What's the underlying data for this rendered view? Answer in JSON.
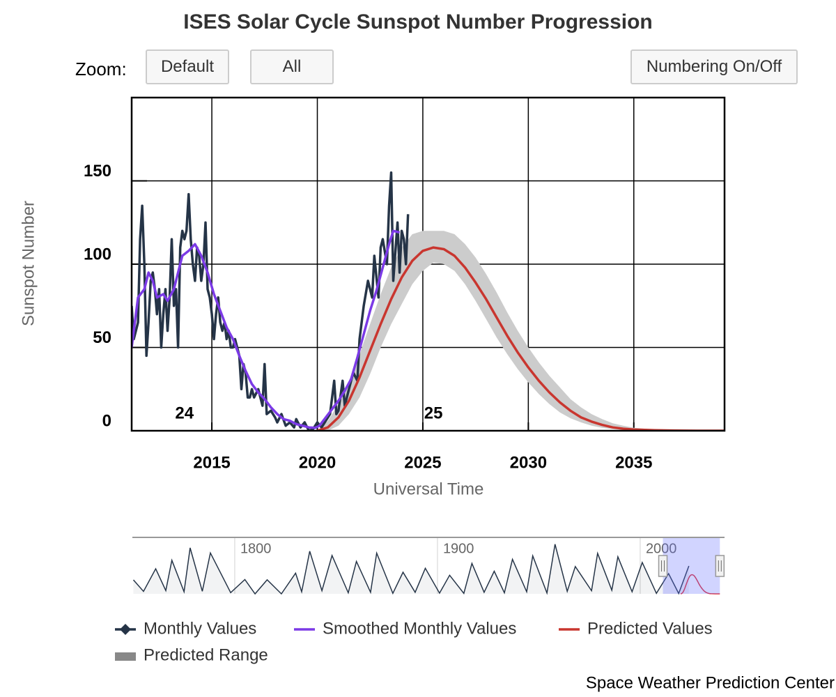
{
  "chart_data": {
    "type": "line",
    "title": "ISES Solar Cycle Sunspot Number Progression",
    "controls": {
      "zoom_label": "Zoom:",
      "buttons": [
        "Default",
        "All",
        "Numbering On/Off"
      ]
    },
    "x_label": "Universal Time",
    "y_label": "Sunspot Number",
    "xlim": [
      2011.2,
      2039.3
    ],
    "ylim": [
      0,
      200
    ],
    "xticks": [
      2015,
      2020,
      2025,
      2030,
      2035
    ],
    "yticks": [
      0,
      50,
      100,
      150
    ],
    "grid": true,
    "series": [
      {
        "name": "Monthly Values",
        "color": "#253447",
        "x": [
          2011.2,
          2011.3,
          2011.4,
          2011.5,
          2011.6,
          2011.7,
          2011.8,
          2011.9,
          2012.0,
          2012.1,
          2012.2,
          2012.3,
          2012.4,
          2012.5,
          2012.6,
          2012.7,
          2012.8,
          2012.9,
          2013.0,
          2013.1,
          2013.2,
          2013.3,
          2013.4,
          2013.5,
          2013.6,
          2013.7,
          2013.8,
          2013.9,
          2014.0,
          2014.1,
          2014.2,
          2014.3,
          2014.4,
          2014.5,
          2014.6,
          2014.7,
          2014.8,
          2014.9,
          2015.0,
          2015.1,
          2015.2,
          2015.3,
          2015.4,
          2015.5,
          2015.6,
          2015.7,
          2015.8,
          2015.9,
          2016.0,
          2016.1,
          2016.3,
          2016.4,
          2016.5,
          2016.6,
          2016.7,
          2016.8,
          2016.9,
          2017.0,
          2017.2,
          2017.4,
          2017.5,
          2017.6,
          2017.8,
          2018.0,
          2018.1,
          2018.3,
          2018.5,
          2018.7,
          2018.9,
          2019.0,
          2019.2,
          2019.4,
          2019.6,
          2019.8,
          2020.0,
          2020.2,
          2020.4,
          2020.6,
          2020.8,
          2020.9,
          2021.0,
          2021.2,
          2021.3,
          2021.5,
          2021.7,
          2021.9,
          2022.0,
          2022.2,
          2022.4,
          2022.6,
          2022.7,
          2022.9,
          2023.0,
          2023.1,
          2023.3,
          2023.4,
          2023.5,
          2023.6,
          2023.8,
          2023.9,
          2024.0,
          2024.1,
          2024.2,
          2024.3
        ],
        "values": [
          75,
          55,
          60,
          65,
          115,
          135,
          100,
          45,
          65,
          90,
          95,
          85,
          70,
          85,
          50,
          70,
          85,
          60,
          80,
          115,
          75,
          85,
          50,
          110,
          120,
          115,
          120,
          142,
          115,
          100,
          90,
          110,
          105,
          90,
          100,
          125,
          85,
          80,
          70,
          55,
          70,
          80,
          65,
          60,
          65,
          55,
          60,
          50,
          50,
          55,
          45,
          25,
          40,
          35,
          20,
          20,
          25,
          20,
          25,
          15,
          40,
          10,
          12,
          8,
          5,
          10,
          3,
          5,
          2,
          7,
          2,
          5,
          0,
          1,
          5,
          2,
          6,
          10,
          30,
          10,
          12,
          30,
          15,
          25,
          35,
          30,
          55,
          75,
          90,
          80,
          105,
          80,
          110,
          115,
          100,
          135,
          155,
          90,
          125,
          95,
          120,
          115,
          100,
          130
        ]
      },
      {
        "name": "Smoothed Monthly Values",
        "color": "#7b3ae6",
        "x": [
          2011.2,
          2011.5,
          2011.8,
          2012.0,
          2012.2,
          2012.4,
          2012.7,
          2012.9,
          2013.2,
          2013.4,
          2013.6,
          2013.9,
          2014.2,
          2014.5,
          2014.8,
          2015.1,
          2015.4,
          2015.7,
          2016.0,
          2016.3,
          2016.6,
          2016.9,
          2017.2,
          2017.5,
          2017.8,
          2018.1,
          2018.4,
          2018.7,
          2019.0,
          2019.3,
          2019.6,
          2019.9,
          2020.1,
          2020.4,
          2020.7,
          2021.0,
          2021.3,
          2021.6,
          2021.9,
          2022.2,
          2022.5,
          2022.8,
          2023.1,
          2023.4,
          2023.6,
          2023.9
        ],
        "values": [
          50,
          80,
          85,
          95,
          90,
          80,
          82,
          78,
          85,
          95,
          105,
          108,
          112,
          105,
          95,
          82,
          72,
          62,
          55,
          45,
          36,
          28,
          23,
          19,
          14,
          10,
          7,
          6,
          4,
          3,
          2,
          1.8,
          3,
          8,
          13,
          18,
          24,
          31,
          44,
          58,
          72,
          84,
          98,
          112,
          120,
          119
        ]
      },
      {
        "name": "Predicted Values",
        "color": "#c9362f",
        "x": [
          2020,
          2020.5,
          2021,
          2021.5,
          2022,
          2022.5,
          2023,
          2023.5,
          2024,
          2024.5,
          2025,
          2025.5,
          2026,
          2026.5,
          2027,
          2027.5,
          2028,
          2028.5,
          2029,
          2029.5,
          2030,
          2030.5,
          2031,
          2031.5,
          2032,
          2032.5,
          2033,
          2033.5,
          2034,
          2034.5,
          2035,
          2036,
          2037,
          2038,
          2039,
          2039.3
        ],
        "values": [
          0,
          2,
          8,
          18,
          32,
          48,
          64,
          79,
          92,
          102,
          108,
          110,
          109,
          105,
          98,
          89,
          79,
          68,
          57,
          47,
          38,
          30,
          23,
          17,
          12,
          8,
          5.5,
          3.5,
          2,
          1.2,
          0.7,
          0.3,
          0.1,
          0,
          0,
          0
        ]
      }
    ],
    "range": {
      "name": "Predicted Range",
      "color": "#cccccc",
      "x": [
        2020,
        2020.5,
        2021,
        2021.5,
        2022,
        2022.5,
        2023,
        2023.5,
        2024,
        2024.5,
        2025,
        2025.5,
        2026,
        2026.5,
        2027,
        2027.5,
        2028,
        2028.5,
        2029,
        2029.5,
        2030,
        2030.5,
        2031,
        2031.5,
        2032,
        2032.5,
        2033,
        2033.5,
        2034,
        2034.5,
        2035,
        2036,
        2037,
        2038,
        2039,
        2039.3
      ],
      "high": [
        0,
        6,
        16,
        30,
        46,
        64,
        82,
        98,
        110,
        118,
        120,
        120,
        120,
        118,
        112,
        104,
        94,
        83,
        71,
        60,
        50,
        41,
        33,
        26,
        19,
        14,
        10,
        7,
        4.5,
        3,
        1.8,
        0.7,
        0.3,
        0.1,
        0,
        0
      ],
      "low": [
        0,
        0,
        3,
        10,
        20,
        34,
        50,
        64,
        76,
        88,
        96,
        101,
        100,
        96,
        88,
        78,
        67,
        56,
        46,
        37,
        29,
        22,
        16,
        11,
        7.5,
        5,
        3,
        1.8,
        1,
        0.5,
        0.3,
        0.1,
        0,
        0,
        0,
        0
      ]
    },
    "annotations": [
      {
        "text": "24",
        "x": 2013.7,
        "y": 10
      },
      {
        "text": "25",
        "x": 2025.5,
        "y": 10
      }
    ],
    "navigator": {
      "xlim": [
        1749.5,
        2041.6
      ],
      "ylim": [
        0,
        300
      ],
      "xticks": [
        1800,
        1900,
        2000
      ],
      "x": [
        1750,
        1755,
        1761,
        1766,
        1769,
        1775,
        1778,
        1784,
        1788,
        1798,
        1805,
        1810,
        1816,
        1823,
        1830,
        1833,
        1837,
        1843,
        1848,
        1856,
        1860,
        1867,
        1870,
        1878,
        1883,
        1889,
        1894,
        1901,
        1906,
        1913,
        1917,
        1923,
        1928,
        1933,
        1937,
        1944,
        1947,
        1954,
        1958,
        1964,
        1968,
        1976,
        1979,
        1986,
        1989,
        1996,
        2001,
        2008,
        2014,
        2019,
        2024
      ],
      "values": [
        80,
        14,
        144,
        19,
        193,
        12,
        264,
        15,
        235,
        7,
        82,
        0,
        81,
        0,
        119,
        12,
        245,
        18,
        220,
        6,
        186,
        9,
        234,
        3,
        124,
        9,
        147,
        4,
        107,
        3,
        175,
        9,
        130,
        6,
        198,
        12,
        218,
        5,
        285,
        14,
        157,
        18,
        233,
        21,
        213,
        12,
        180,
        3,
        116,
        2,
        160
      ]
    },
    "footer": "Space Weather Prediction Center"
  }
}
